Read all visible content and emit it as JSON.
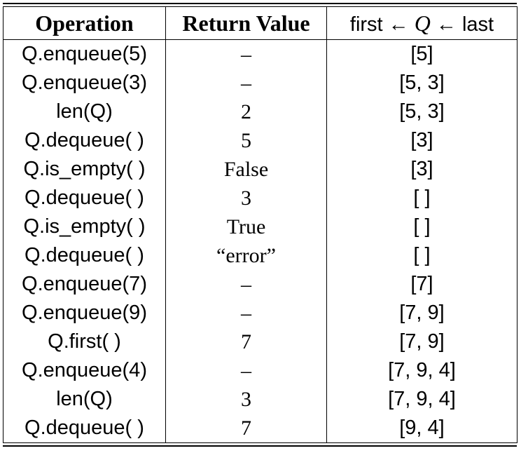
{
  "table": {
    "headers": {
      "operation": "Operation",
      "return_value": "Return Value",
      "state_first": "first",
      "state_arrow1": "←",
      "state_q": "Q",
      "state_arrow2": "←",
      "state_last": "last"
    },
    "rows": [
      {
        "op": "Q.enqueue(5)",
        "ret": "–",
        "state": "[5]"
      },
      {
        "op": "Q.enqueue(3)",
        "ret": "–",
        "state": "[5, 3]"
      },
      {
        "op": "len(Q)",
        "ret": "2",
        "state": "[5, 3]"
      },
      {
        "op": "Q.dequeue( )",
        "ret": "5",
        "state": "[3]"
      },
      {
        "op": "Q.is_empty( )",
        "ret": "False",
        "state": "[3]"
      },
      {
        "op": "Q.dequeue( )",
        "ret": "3",
        "state": "[ ]"
      },
      {
        "op": "Q.is_empty( )",
        "ret": "True",
        "state": "[ ]"
      },
      {
        "op": "Q.dequeue( )",
        "ret": "“error”",
        "state": "[ ]"
      },
      {
        "op": "Q.enqueue(7)",
        "ret": "–",
        "state": "[7]"
      },
      {
        "op": "Q.enqueue(9)",
        "ret": "–",
        "state": "[7, 9]"
      },
      {
        "op": "Q.first( )",
        "ret": "7",
        "state": "[7, 9]"
      },
      {
        "op": "Q.enqueue(4)",
        "ret": "–",
        "state": "[7, 9, 4]"
      },
      {
        "op": "len(Q)",
        "ret": "3",
        "state": "[7, 9, 4]"
      },
      {
        "op": "Q.dequeue( )",
        "ret": "7",
        "state": "[9, 4]"
      }
    ]
  }
}
